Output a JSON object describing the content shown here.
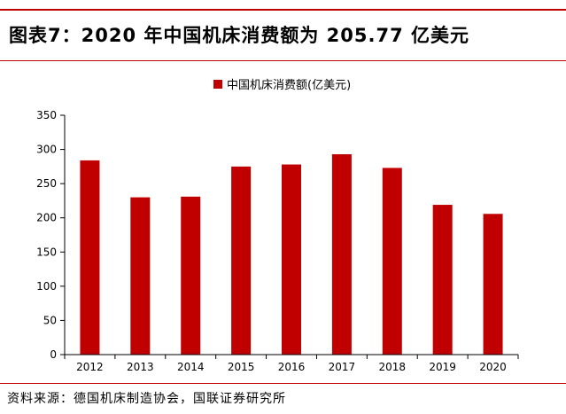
{
  "figure": {
    "title": "图表7：2020 年中国机床消费额为 205.77 亿美元",
    "source": "资料来源：德国机床制造协会，国联证券研究所"
  },
  "colors": {
    "accent": "#c00000",
    "bar": "#c00000"
  },
  "chart_data": {
    "type": "bar",
    "categories": [
      "2012",
      "2013",
      "2014",
      "2015",
      "2016",
      "2017",
      "2018",
      "2019",
      "2020"
    ],
    "series": [
      {
        "name": "中国机床消费额(亿美元)",
        "values": [
          284,
          230,
          231,
          275,
          278,
          293,
          273,
          219,
          205.77
        ]
      }
    ],
    "yticks": [
      "0",
      "50",
      "100",
      "150",
      "200",
      "250",
      "300",
      "350"
    ],
    "ylim": [
      0,
      350
    ],
    "grid": false,
    "legend": "top-center"
  }
}
